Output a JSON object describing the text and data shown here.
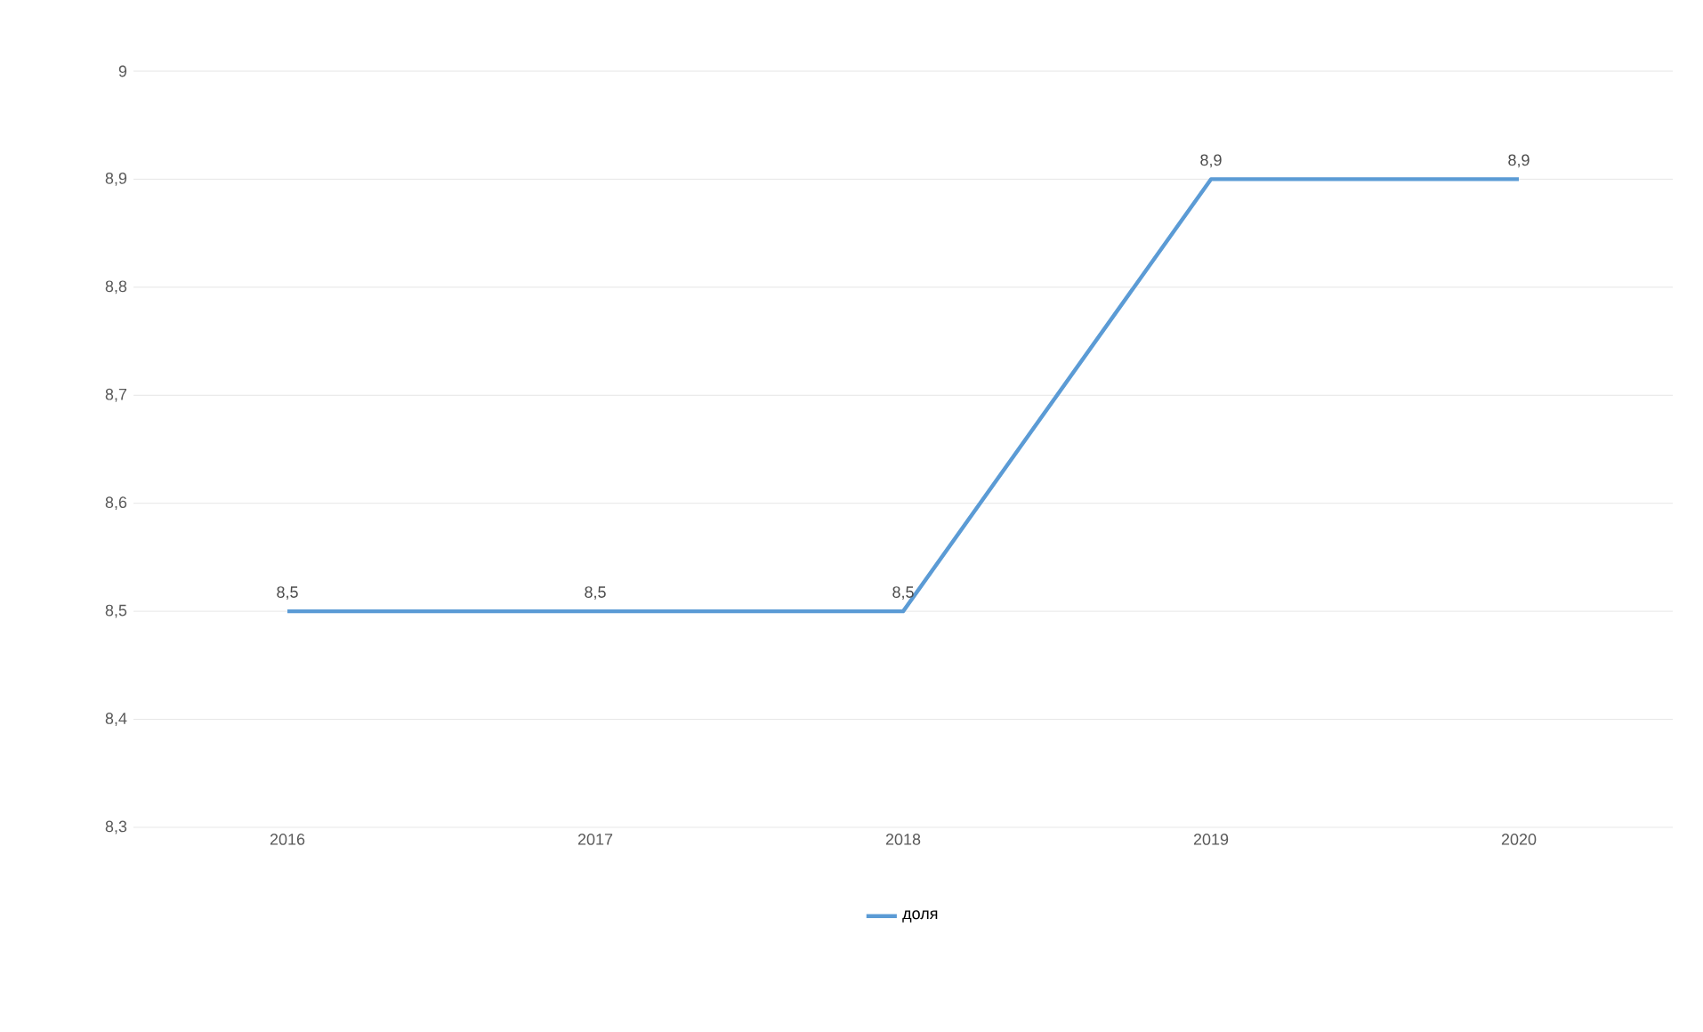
{
  "chart_data": {
    "type": "line",
    "categories": [
      "2016",
      "2017",
      "2018",
      "2019",
      "2020"
    ],
    "series": [
      {
        "name": "доля",
        "color": "#5b9bd5",
        "values": [
          8.5,
          8.5,
          8.5,
          8.9,
          8.9
        ],
        "value_labels": [
          "8,5",
          "8,5",
          "8,5",
          "8,9",
          "8,9"
        ]
      }
    ],
    "ylim": [
      8.3,
      9
    ],
    "yticks": [
      {
        "value": 8.3,
        "label": "8,3"
      },
      {
        "value": 8.4,
        "label": "8,4"
      },
      {
        "value": 8.5,
        "label": "8,5"
      },
      {
        "value": 8.6,
        "label": "8,6"
      },
      {
        "value": 8.7,
        "label": "8,7"
      },
      {
        "value": 8.8,
        "label": "8,8"
      },
      {
        "value": 8.9,
        "label": "8,9"
      },
      {
        "value": 9,
        "label": "9"
      }
    ],
    "grid": "y",
    "legend": "bottom",
    "marker": "none",
    "line_style": "solid"
  }
}
